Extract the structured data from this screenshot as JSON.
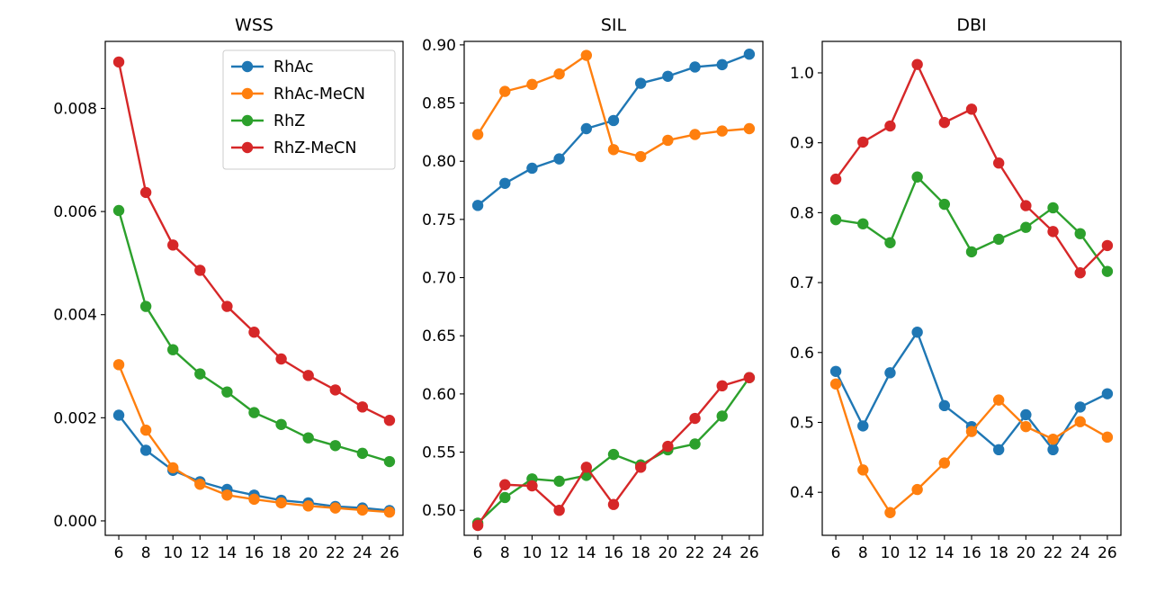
{
  "chart_data": [
    {
      "type": "line",
      "title": "WSS",
      "xlabel": "",
      "ylabel": "",
      "x": [
        6,
        8,
        10,
        12,
        14,
        16,
        18,
        20,
        22,
        24,
        26
      ],
      "xlim": [
        5,
        27
      ],
      "ylim": [
        -0.00028,
        0.0093
      ],
      "x_ticks": [
        6,
        8,
        10,
        12,
        14,
        16,
        18,
        20,
        22,
        24,
        26
      ],
      "x_tick_labels": [
        "6",
        "8",
        "10",
        "12",
        "14",
        "16",
        "18",
        "20",
        "22",
        "24",
        "26"
      ],
      "y_ticks": [
        0.0,
        0.002,
        0.004,
        0.006,
        0.008
      ],
      "y_tick_labels": [
        "0.000",
        "0.002",
        "0.004",
        "0.006",
        "0.008"
      ],
      "grid": false,
      "legend": "top-right",
      "series": [
        {
          "name": "RhAc",
          "color": "#1f77b4",
          "values": [
            0.00205,
            0.00137,
            0.00098,
            0.00076,
            0.00061,
            0.0005,
            0.0004,
            0.00035,
            0.00028,
            0.00025,
            0.0002
          ]
        },
        {
          "name": "RhAc-MeCN",
          "color": "#ff7f0e",
          "values": [
            0.00303,
            0.00176,
            0.00103,
            0.00071,
            0.0005,
            0.00042,
            0.00035,
            0.00029,
            0.00025,
            0.00021,
            0.00017
          ]
        },
        {
          "name": "RhZ",
          "color": "#2ca02c",
          "values": [
            0.00602,
            0.00416,
            0.00332,
            0.00285,
            0.0025,
            0.0021,
            0.00187,
            0.00161,
            0.00146,
            0.00131,
            0.00115
          ]
        },
        {
          "name": "RhZ-MeCN",
          "color": "#d62728",
          "values": [
            0.0089,
            0.00637,
            0.00535,
            0.00486,
            0.00416,
            0.00366,
            0.00314,
            0.00282,
            0.00254,
            0.00221,
            0.00195
          ]
        }
      ]
    },
    {
      "type": "line",
      "title": "SIL",
      "xlabel": "",
      "ylabel": "",
      "x": [
        6,
        8,
        10,
        12,
        14,
        16,
        18,
        20,
        22,
        24,
        26
      ],
      "xlim": [
        5,
        27
      ],
      "ylim": [
        0.4785,
        0.903
      ],
      "x_ticks": [
        6,
        8,
        10,
        12,
        14,
        16,
        18,
        20,
        22,
        24,
        26
      ],
      "x_tick_labels": [
        "6",
        "8",
        "10",
        "12",
        "14",
        "16",
        "18",
        "20",
        "22",
        "24",
        "26"
      ],
      "y_ticks": [
        0.5,
        0.55,
        0.6,
        0.65,
        0.7,
        0.75,
        0.8,
        0.85,
        0.9
      ],
      "y_tick_labels": [
        "0.50",
        "0.55",
        "0.60",
        "0.65",
        "0.70",
        "0.75",
        "0.80",
        "0.85",
        "0.90"
      ],
      "grid": false,
      "legend": "none",
      "series": [
        {
          "color": "#1f77b4",
          "values": [
            0.762,
            0.781,
            0.794,
            0.802,
            0.828,
            0.835,
            0.867,
            0.873,
            0.881,
            0.883,
            0.892
          ]
        },
        {
          "color": "#ff7f0e",
          "values": [
            0.823,
            0.86,
            0.866,
            0.875,
            0.891,
            0.81,
            0.804,
            0.818,
            0.823,
            0.826,
            0.828
          ]
        },
        {
          "color": "#2ca02c",
          "values": [
            0.489,
            0.511,
            0.527,
            0.525,
            0.53,
            0.548,
            0.539,
            0.552,
            0.557,
            0.581,
            0.614
          ]
        },
        {
          "color": "#d62728",
          "values": [
            0.487,
            0.522,
            0.521,
            0.5,
            0.537,
            0.505,
            0.537,
            0.555,
            0.579,
            0.607,
            0.614
          ]
        }
      ]
    },
    {
      "type": "line",
      "title": "DBI",
      "xlabel": "",
      "ylabel": "",
      "x": [
        6,
        8,
        10,
        12,
        14,
        16,
        18,
        20,
        22,
        24,
        26
      ],
      "xlim": [
        5,
        27
      ],
      "ylim": [
        0.3385,
        1.045
      ],
      "x_ticks": [
        6,
        8,
        10,
        12,
        14,
        16,
        18,
        20,
        22,
        24,
        26
      ],
      "x_tick_labels": [
        "6",
        "8",
        "10",
        "12",
        "14",
        "16",
        "18",
        "20",
        "22",
        "24",
        "26"
      ],
      "y_ticks": [
        0.4,
        0.5,
        0.6,
        0.7,
        0.8,
        0.9,
        1.0
      ],
      "y_tick_labels": [
        "0.4",
        "0.5",
        "0.6",
        "0.7",
        "0.8",
        "0.9",
        "1.0"
      ],
      "grid": false,
      "legend": "none",
      "series": [
        {
          "color": "#1f77b4",
          "values": [
            0.573,
            0.495,
            0.571,
            0.629,
            0.524,
            0.494,
            0.461,
            0.511,
            0.461,
            0.522,
            0.541
          ]
        },
        {
          "color": "#ff7f0e",
          "values": [
            0.555,
            0.432,
            0.371,
            0.404,
            0.442,
            0.487,
            0.532,
            0.494,
            0.476,
            0.501,
            0.479
          ]
        },
        {
          "color": "#2ca02c",
          "values": [
            0.79,
            0.784,
            0.757,
            0.851,
            0.812,
            0.744,
            0.762,
            0.779,
            0.807,
            0.77,
            0.716
          ]
        },
        {
          "color": "#d62728",
          "values": [
            0.848,
            0.901,
            0.924,
            1.012,
            0.929,
            0.948,
            0.871,
            0.81,
            0.773,
            0.714,
            0.753
          ]
        }
      ]
    }
  ]
}
